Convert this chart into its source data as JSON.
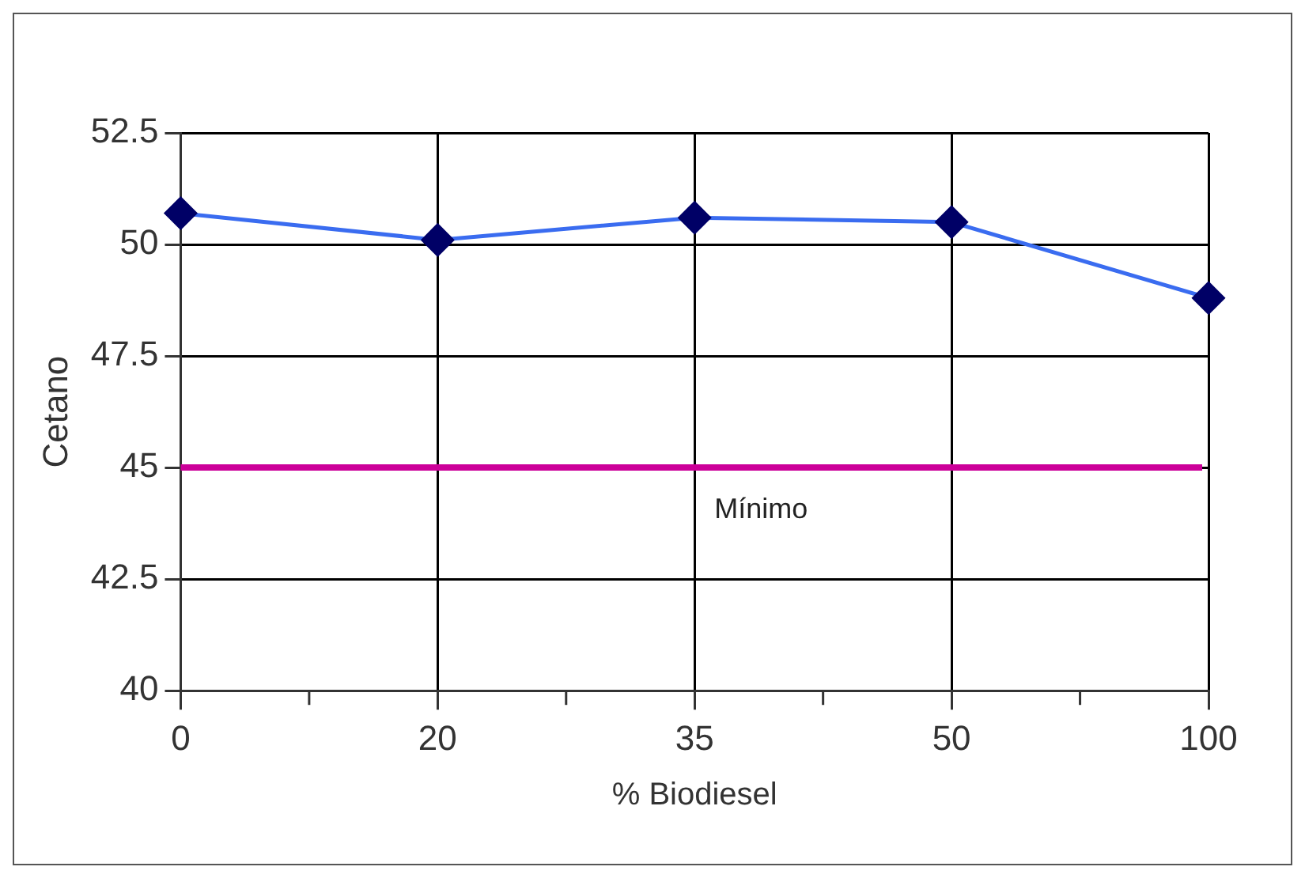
{
  "chart_data": {
    "type": "line",
    "xlabel": "% Biodiesel",
    "ylabel": "Cetano",
    "categories": [
      "0",
      "20",
      "35",
      "50",
      "100"
    ],
    "series": [
      {
        "color": "#3a6cf0",
        "values": [
          50.7,
          50.1,
          50.6,
          50.5,
          48.8
        ]
      }
    ],
    "ylim": [
      40,
      52.5
    ],
    "yticks": [
      40,
      {
        "value": 42.5,
        "label": "42.5"
      },
      45,
      {
        "value": 47.5,
        "label": "47.5"
      },
      50,
      {
        "value": 52.5,
        "label": "52.5"
      }
    ],
    "grid": true,
    "legend": false,
    "marker": "diamond",
    "line_style": "solid",
    "ref_lines": [
      {
        "axis": "y",
        "value": 45,
        "label": "Mínimo",
        "color": "#cc0099"
      }
    ]
  }
}
